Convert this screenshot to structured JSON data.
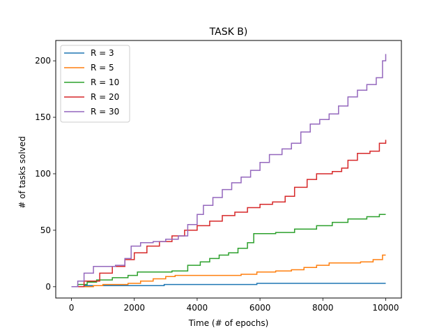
{
  "chart_data": {
    "type": "line",
    "title": "TASK B)",
    "xlabel": "Time (# of epochs)",
    "ylabel": "# of tasks solved",
    "xlim": [
      -500,
      10500
    ],
    "ylim": [
      -10,
      218
    ],
    "xticks": [
      0,
      2000,
      4000,
      6000,
      8000,
      10000
    ],
    "yticks": [
      0,
      50,
      100,
      150,
      200
    ],
    "xtick_labels": [
      "0",
      "2000",
      "4000",
      "6000",
      "8000",
      "10000"
    ],
    "ytick_labels": [
      "0",
      "50",
      "100",
      "150",
      "200"
    ],
    "grid": false,
    "legend_position": "top-left",
    "series": [
      {
        "name": "R = 3",
        "color": "#1f77b4",
        "x": [
          0,
          400,
          900,
          2950,
          5900,
          10000
        ],
        "y": [
          0,
          1,
          1,
          2,
          3,
          3
        ]
      },
      {
        "name": "R = 5",
        "color": "#ff7f0e",
        "x": [
          0,
          300,
          700,
          1000,
          1800,
          2200,
          2600,
          3000,
          3300,
          5000,
          5400,
          5900,
          6500,
          7000,
          7400,
          7800,
          8200,
          8700,
          9200,
          9600,
          9900,
          10000
        ],
        "y": [
          0,
          0,
          1,
          2,
          3,
          5,
          7,
          9,
          10,
          10,
          11,
          13,
          14,
          15,
          17,
          19,
          21,
          21,
          22,
          24,
          28,
          28
        ]
      },
      {
        "name": "R = 10",
        "color": "#2ca02c",
        "x": [
          0,
          200,
          500,
          800,
          1300,
          1800,
          2100,
          2600,
          3200,
          3700,
          4100,
          4400,
          4700,
          5000,
          5300,
          5600,
          5800,
          6500,
          7100,
          7800,
          8300,
          8800,
          9400,
          9800,
          10000
        ],
        "y": [
          0,
          2,
          4,
          6,
          8,
          10,
          13,
          13,
          14,
          19,
          22,
          25,
          28,
          30,
          34,
          39,
          47,
          48,
          51,
          54,
          57,
          60,
          62,
          64,
          64
        ]
      },
      {
        "name": "R = 20",
        "color": "#d62728",
        "x": [
          0,
          400,
          900,
          1300,
          1700,
          2000,
          2400,
          2800,
          3200,
          3600,
          4000,
          4400,
          4800,
          5200,
          5600,
          6000,
          6400,
          6800,
          7100,
          7500,
          7800,
          8300,
          8600,
          8800,
          9100,
          9500,
          9800,
          10000
        ],
        "y": [
          0,
          5,
          12,
          18,
          24,
          30,
          36,
          40,
          45,
          50,
          54,
          58,
          63,
          66,
          70,
          73,
          75,
          80,
          88,
          95,
          100,
          102,
          105,
          112,
          118,
          120,
          127,
          130
        ]
      },
      {
        "name": "R = 30",
        "color": "#9467bd",
        "x": [
          0,
          200,
          400,
          700,
          1000,
          1400,
          1700,
          1900,
          2200,
          2600,
          3000,
          3400,
          3700,
          4000,
          4200,
          4500,
          4800,
          5100,
          5400,
          5700,
          6000,
          6300,
          6700,
          7000,
          7300,
          7600,
          7900,
          8200,
          8500,
          8800,
          9100,
          9400,
          9700,
          9900,
          10000
        ],
        "y": [
          0,
          5,
          12,
          18,
          18,
          19,
          25,
          36,
          39,
          40,
          42,
          45,
          55,
          64,
          72,
          79,
          86,
          92,
          97,
          103,
          110,
          117,
          122,
          127,
          137,
          144,
          148,
          153,
          160,
          168,
          174,
          179,
          185,
          200,
          206
        ]
      }
    ]
  }
}
